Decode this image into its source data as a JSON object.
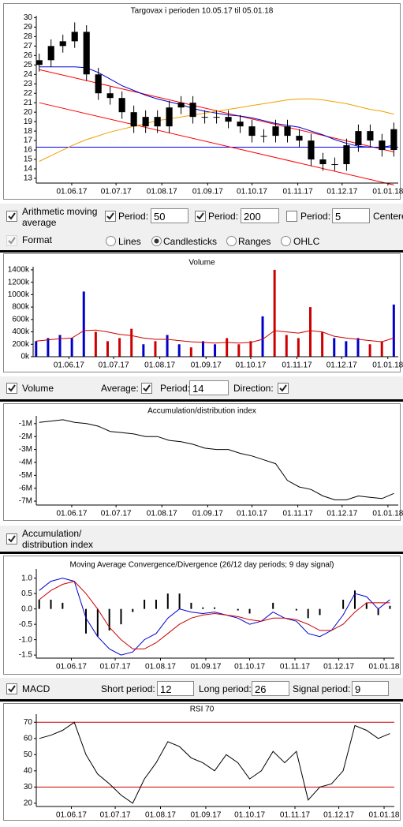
{
  "chart_data": [
    {
      "type": "candlestick",
      "title": "Targovax i perioden 10.05.17 til 05.01.18",
      "color": "#000000",
      "x": [
        "2017-05-10",
        "2017-05-18",
        "2017-05-26",
        "2017-06-03",
        "2017-06-11",
        "2017-06-19",
        "2017-06-27",
        "2017-07-05",
        "2017-07-13",
        "2017-07-21",
        "2017-07-29",
        "2017-08-06",
        "2017-08-14",
        "2017-08-22",
        "2017-08-30",
        "2017-09-07",
        "2017-09-15",
        "2017-09-23",
        "2017-10-01",
        "2017-10-09",
        "2017-10-17",
        "2017-10-25",
        "2017-11-02",
        "2017-11-10",
        "2017-11-18",
        "2017-11-26",
        "2017-12-04",
        "2017-12-12",
        "2017-12-20",
        "2017-12-28",
        "2018-01-05"
      ],
      "open": [
        25.0,
        25.5,
        27.0,
        27.5,
        28.5,
        24.0,
        22.0,
        21.5,
        20.0,
        18.5,
        19.5,
        18.5,
        20.5,
        21.0,
        19.5,
        19.5,
        19.5,
        19.0,
        18.5,
        17.5,
        17.5,
        18.5,
        17.5,
        17.0,
        15.0,
        14.5,
        14.5,
        16.5,
        18.0,
        17.0,
        16.0
      ],
      "high": [
        26.2,
        27.7,
        28.2,
        29.5,
        29.2,
        24.7,
        22.7,
        22.2,
        20.7,
        20.2,
        20.2,
        21.2,
        21.7,
        21.7,
        20.2,
        20.2,
        20.2,
        19.7,
        19.2,
        18.2,
        19.2,
        19.2,
        18.2,
        17.7,
        15.7,
        15.2,
        17.2,
        18.7,
        18.7,
        17.7,
        18.9
      ],
      "low": [
        24.3,
        24.8,
        26.3,
        26.8,
        23.3,
        21.3,
        20.8,
        19.3,
        17.8,
        17.8,
        17.8,
        17.8,
        19.8,
        18.8,
        18.8,
        18.8,
        18.3,
        17.8,
        16.8,
        16.8,
        16.8,
        16.8,
        16.3,
        14.3,
        13.8,
        13.8,
        13.8,
        15.8,
        16.3,
        15.3,
        15.3
      ],
      "close": [
        25.5,
        27.0,
        27.5,
        28.5,
        24.0,
        22.0,
        21.5,
        20.0,
        18.5,
        19.5,
        18.5,
        20.5,
        21.0,
        19.5,
        19.5,
        19.5,
        19.0,
        18.5,
        17.5,
        17.5,
        18.5,
        17.5,
        17.0,
        15.0,
        14.5,
        14.5,
        16.5,
        18.0,
        17.0,
        16.0,
        18.2
      ],
      "overlays": [
        {
          "color": "#0000cc",
          "values": [
            24.8,
            24.8,
            24.8,
            24.8,
            24.7,
            24.2,
            23.5,
            22.8,
            22.3,
            21.8,
            21.4,
            21.1,
            20.8,
            20.4,
            20.1,
            19.9,
            19.7,
            19.6,
            19.4,
            19.1,
            18.8,
            18.6,
            18.4,
            18.0,
            17.6,
            17.1,
            16.7,
            16.4,
            16.3,
            16.3,
            16.5
          ]
        },
        {
          "color": "#f0a000",
          "values": [
            14.8,
            15.4,
            16.0,
            16.6,
            17.1,
            17.5,
            17.9,
            18.2,
            18.5,
            18.8,
            19.1,
            19.3,
            19.5,
            19.7,
            19.9,
            20.1,
            20.3,
            20.5,
            20.7,
            20.9,
            21.1,
            21.3,
            21.4,
            21.4,
            21.3,
            21.1,
            20.9,
            20.6,
            20.3,
            20.1,
            19.8
          ]
        }
      ],
      "trendlines": [
        {
          "color": "#ff0000",
          "x": [
            "2017-05-10",
            "2018-01-05"
          ],
          "values": [
            24.5,
            15.8
          ]
        },
        {
          "color": "#ff0000",
          "x": [
            "2017-05-10",
            "2018-01-05"
          ],
          "values": [
            21.0,
            12.3
          ]
        }
      ],
      "hlines": [
        {
          "color": "#0000ff",
          "value": 16.3
        }
      ],
      "xlim": [
        "2017-05-08",
        "2018-01-08"
      ],
      "xticks": [
        {
          "value": "2017-06-01",
          "label": "01.06.17"
        },
        {
          "value": "2017-07-01",
          "label": "01.07.17"
        },
        {
          "value": "2017-08-01",
          "label": "01.08.17"
        },
        {
          "value": "2017-09-01",
          "label": "01.09.17"
        },
        {
          "value": "2017-10-01",
          "label": "01.10.17"
        },
        {
          "value": "2017-11-01",
          "label": "01.11.17"
        },
        {
          "value": "2017-12-01",
          "label": "01.12.17"
        },
        {
          "value": "2018-01-01",
          "label": "01.01.18"
        }
      ],
      "ylim": [
        12.5,
        30.2
      ],
      "yticks": [
        13,
        14,
        15,
        16,
        17,
        18,
        19,
        20,
        21,
        22,
        23,
        24,
        25,
        26,
        27,
        28,
        29,
        30
      ]
    },
    {
      "type": "bar",
      "title": "Volume",
      "x": [
        "2017-05-10",
        "2017-05-18",
        "2017-05-26",
        "2017-06-03",
        "2017-06-11",
        "2017-06-19",
        "2017-06-27",
        "2017-07-05",
        "2017-07-13",
        "2017-07-21",
        "2017-07-29",
        "2017-08-06",
        "2017-08-14",
        "2017-08-22",
        "2017-08-30",
        "2017-09-07",
        "2017-09-15",
        "2017-09-23",
        "2017-10-01",
        "2017-10-09",
        "2017-10-17",
        "2017-10-25",
        "2017-11-02",
        "2017-11-10",
        "2017-11-18",
        "2017-11-26",
        "2017-12-04",
        "2017-12-12",
        "2017-12-20",
        "2017-12-28",
        "2018-01-05"
      ],
      "values": [
        250,
        300,
        350,
        300,
        1050,
        400,
        250,
        300,
        450,
        200,
        250,
        350,
        200,
        150,
        250,
        200,
        300,
        200,
        250,
        650,
        1400,
        350,
        300,
        800,
        400,
        300,
        250,
        300,
        200,
        250,
        840
      ],
      "colors": [
        "#0000cc",
        "#0000cc",
        "#0000cc",
        "#0000cc",
        "#0000cc",
        "#cc0000",
        "#cc0000",
        "#cc0000",
        "#cc0000",
        "#0000cc",
        "#cc0000",
        "#0000cc",
        "#0000cc",
        "#cc0000",
        "#0000cc",
        "#0000cc",
        "#cc0000",
        "#cc0000",
        "#cc0000",
        "#0000cc",
        "#cc0000",
        "#cc0000",
        "#cc0000",
        "#cc0000",
        "#cc0000",
        "#0000cc",
        "#0000cc",
        "#0000cc",
        "#cc0000",
        "#cc0000",
        "#0000cc"
      ],
      "average": {
        "color": "#cc0000",
        "values": [
          250,
          270,
          290,
          300,
          420,
          430,
          400,
          360,
          340,
          300,
          280,
          280,
          260,
          240,
          230,
          220,
          230,
          220,
          230,
          280,
          420,
          400,
          380,
          420,
          400,
          330,
          300,
          280,
          260,
          240,
          300
        ]
      },
      "xlim": [
        "2017-05-08",
        "2018-01-08"
      ],
      "xticks": [
        {
          "value": "2017-06-01",
          "label": "01.06.17"
        },
        {
          "value": "2017-07-01",
          "label": "01.07.17"
        },
        {
          "value": "2017-08-01",
          "label": "01.08.17"
        },
        {
          "value": "2017-09-01",
          "label": "01.09.17"
        },
        {
          "value": "2017-10-01",
          "label": "01.10.17"
        },
        {
          "value": "2017-11-01",
          "label": "01.11.17"
        },
        {
          "value": "2017-12-01",
          "label": "01.12.17"
        },
        {
          "value": "2018-01-01",
          "label": "01.01.18"
        }
      ],
      "ylim": [
        0,
        1450
      ],
      "yticks": [
        {
          "value": 0,
          "label": "0k"
        },
        {
          "value": 200,
          "label": "200k"
        },
        {
          "value": 400,
          "label": "400k"
        },
        {
          "value": 600,
          "label": "600k"
        },
        {
          "value": 800,
          "label": "800k"
        },
        {
          "value": 1000,
          "label": "1000k"
        },
        {
          "value": 1200,
          "label": "1200k"
        },
        {
          "value": 1400,
          "label": "1400k"
        }
      ]
    },
    {
      "type": "line",
      "title": "Accumulation/distribution index",
      "x": [
        "2017-05-10",
        "2017-05-18",
        "2017-05-26",
        "2017-06-03",
        "2017-06-11",
        "2017-06-19",
        "2017-06-27",
        "2017-07-05",
        "2017-07-13",
        "2017-07-21",
        "2017-07-29",
        "2017-08-06",
        "2017-08-14",
        "2017-08-22",
        "2017-08-30",
        "2017-09-07",
        "2017-09-15",
        "2017-09-23",
        "2017-10-01",
        "2017-10-09",
        "2017-10-17",
        "2017-10-25",
        "2017-11-02",
        "2017-11-10",
        "2017-11-18",
        "2017-11-26",
        "2017-12-04",
        "2017-12-12",
        "2017-12-20",
        "2017-12-28",
        "2018-01-05"
      ],
      "series": [
        {
          "color": "#000000",
          "values": [
            -0.9,
            -0.8,
            -0.7,
            -0.9,
            -1.0,
            -1.2,
            -1.6,
            -1.7,
            -1.8,
            -2.0,
            -2.0,
            -2.3,
            -2.4,
            -2.6,
            -2.9,
            -3.0,
            -3.0,
            -3.3,
            -3.5,
            -3.8,
            -4.1,
            -5.4,
            -5.9,
            -6.1,
            -6.6,
            -6.9,
            -6.9,
            -6.6,
            -6.7,
            -6.8,
            -6.4
          ]
        }
      ],
      "xlim": [
        "2017-05-08",
        "2018-01-08"
      ],
      "xticks": [
        {
          "value": "2017-06-01",
          "label": "01.06.17"
        },
        {
          "value": "2017-07-01",
          "label": "01.07.17"
        },
        {
          "value": "2017-08-01",
          "label": "01.08.17"
        },
        {
          "value": "2017-09-01",
          "label": "01.09.17"
        },
        {
          "value": "2017-10-01",
          "label": "01.10.17"
        },
        {
          "value": "2017-11-01",
          "label": "01.11.17"
        },
        {
          "value": "2017-12-01",
          "label": "01.12.17"
        },
        {
          "value": "2018-01-01",
          "label": "01.01.18"
        }
      ],
      "ylim": [
        -7.3,
        -0.4
      ],
      "yticks": [
        {
          "value": -1,
          "label": "-1M"
        },
        {
          "value": -2,
          "label": "-2M"
        },
        {
          "value": -3,
          "label": "-3M"
        },
        {
          "value": -4,
          "label": "-4M"
        },
        {
          "value": -5,
          "label": "-5M"
        },
        {
          "value": -6,
          "label": "-6M"
        },
        {
          "value": -7,
          "label": "-7M"
        }
      ]
    },
    {
      "type": "line",
      "title": "Moving Average Convergence/Divergence (26/12 day periods; 9 day signal)",
      "x": [
        "2017-05-10",
        "2017-05-18",
        "2017-05-26",
        "2017-06-03",
        "2017-06-11",
        "2017-06-19",
        "2017-06-27",
        "2017-07-05",
        "2017-07-13",
        "2017-07-21",
        "2017-07-29",
        "2017-08-06",
        "2017-08-14",
        "2017-08-22",
        "2017-08-30",
        "2017-09-07",
        "2017-09-15",
        "2017-09-23",
        "2017-10-01",
        "2017-10-09",
        "2017-10-17",
        "2017-10-25",
        "2017-11-02",
        "2017-11-10",
        "2017-11-18",
        "2017-11-26",
        "2017-12-04",
        "2017-12-12",
        "2017-12-20",
        "2017-12-28",
        "2018-01-05"
      ],
      "series": [
        {
          "color": "#0000cc",
          "values": [
            0.6,
            0.9,
            1.0,
            0.9,
            -0.3,
            -0.9,
            -1.3,
            -1.5,
            -1.4,
            -1.0,
            -0.8,
            -0.3,
            0.0,
            -0.1,
            -0.15,
            -0.1,
            -0.2,
            -0.3,
            -0.5,
            -0.4,
            -0.1,
            -0.3,
            -0.4,
            -0.8,
            -0.9,
            -0.7,
            -0.2,
            0.5,
            0.4,
            0.0,
            0.3
          ]
        },
        {
          "color": "#cc0000",
          "values": [
            0.3,
            0.6,
            0.8,
            0.9,
            0.5,
            0.0,
            -0.6,
            -1.0,
            -1.3,
            -1.3,
            -1.1,
            -0.8,
            -0.5,
            -0.3,
            -0.2,
            -0.15,
            -0.2,
            -0.25,
            -0.35,
            -0.4,
            -0.3,
            -0.3,
            -0.35,
            -0.5,
            -0.7,
            -0.7,
            -0.5,
            -0.1,
            0.2,
            0.2,
            0.2
          ]
        }
      ],
      "histogram": {
        "color": "#000000",
        "values": [
          0.3,
          0.3,
          0.2,
          0.0,
          -0.8,
          -0.9,
          -0.7,
          -0.5,
          -0.1,
          0.3,
          0.3,
          0.5,
          0.5,
          0.2,
          0.05,
          0.05,
          0.0,
          -0.05,
          -0.15,
          0.0,
          0.2,
          0.0,
          -0.05,
          -0.3,
          -0.2,
          0.0,
          0.3,
          0.6,
          0.2,
          -0.2,
          0.1
        ]
      },
      "xlim": [
        "2017-05-08",
        "2018-01-08"
      ],
      "xticks": [
        {
          "value": "2017-06-01",
          "label": "01.06.17"
        },
        {
          "value": "2017-07-01",
          "label": "01.07.17"
        },
        {
          "value": "2017-08-01",
          "label": "01.08.17"
        },
        {
          "value": "2017-09-01",
          "label": "01.09.17"
        },
        {
          "value": "2017-10-01",
          "label": "01.10.17"
        },
        {
          "value": "2017-11-01",
          "label": "01.11.17"
        },
        {
          "value": "2017-12-01",
          "label": "01.12.17"
        },
        {
          "value": "2018-01-01",
          "label": "01.01.18"
        }
      ],
      "ylim": [
        -1.6,
        1.3
      ],
      "yticks": [
        {
          "value": 1,
          "label": "1.0"
        },
        0.5,
        {
          "value": 0,
          "label": "0.0"
        },
        -0.5,
        {
          "value": -1,
          "label": "-1.0"
        },
        -1.5
      ]
    },
    {
      "type": "line",
      "title": "RSI 70",
      "x": [
        "2017-05-10",
        "2017-05-18",
        "2017-05-26",
        "2017-06-03",
        "2017-06-11",
        "2017-06-19",
        "2017-06-27",
        "2017-07-05",
        "2017-07-13",
        "2017-07-21",
        "2017-07-29",
        "2017-08-06",
        "2017-08-14",
        "2017-08-22",
        "2017-08-30",
        "2017-09-07",
        "2017-09-15",
        "2017-09-23",
        "2017-10-01",
        "2017-10-09",
        "2017-10-17",
        "2017-10-25",
        "2017-11-02",
        "2017-11-10",
        "2017-11-18",
        "2017-11-26",
        "2017-12-04",
        "2017-12-12",
        "2017-12-20",
        "2017-12-28",
        "2018-01-05"
      ],
      "series": [
        {
          "color": "#000000",
          "values": [
            60,
            62,
            65,
            70,
            50,
            38,
            32,
            25,
            20,
            35,
            45,
            58,
            55,
            48,
            45,
            40,
            50,
            45,
            35,
            40,
            52,
            45,
            52,
            22,
            30,
            32,
            40,
            68,
            65,
            60,
            63
          ]
        }
      ],
      "hlines": [
        {
          "color": "#cc0000",
          "value": 30
        },
        {
          "color": "#cc0000",
          "value": 70
        }
      ],
      "xlim": [
        "2017-05-08",
        "2018-01-08"
      ],
      "xticks": [
        {
          "value": "2017-06-01",
          "label": "01.06.17"
        },
        {
          "value": "2017-07-01",
          "label": "01.07.17"
        },
        {
          "value": "2017-08-01",
          "label": "01.08.17"
        },
        {
          "value": "2017-09-01",
          "label": "01.09.17"
        },
        {
          "value": "2017-10-01",
          "label": "01.10.17"
        },
        {
          "value": "2017-11-01",
          "label": "01.11.17"
        },
        {
          "value": "2017-12-01",
          "label": "01.12.17"
        },
        {
          "value": "2018-01-01",
          "label": "01.01.18"
        }
      ],
      "ylim": [
        18,
        75
      ],
      "yticks": [
        20,
        30,
        40,
        50,
        60,
        70
      ]
    }
  ],
  "controls": {
    "ma": {
      "checked": true,
      "label": "Arithmetic moving average",
      "periods": [
        {
          "checked": true,
          "label": "Period:",
          "value": "50"
        },
        {
          "checked": true,
          "label": "Period:",
          "value": "200"
        },
        {
          "checked": false,
          "label": "Period:",
          "value": "5"
        }
      ],
      "extra": "Centere"
    },
    "format": {
      "checked": true,
      "disabled": true,
      "label": "Format",
      "options": [
        "Lines",
        "Candlesticks",
        "Ranges",
        "OHLC"
      ],
      "selected": 1
    },
    "volume": {
      "checked": true,
      "label": "Volume",
      "average": {
        "label": "Average:",
        "checked": true
      },
      "period": {
        "label": "Period:",
        "value": "14"
      },
      "direction": {
        "label": "Direction:",
        "checked": true
      }
    },
    "ad": {
      "checked": true,
      "label": "Accumulation/ distribution index"
    },
    "macd": {
      "checked": true,
      "label": "MACD",
      "fields": [
        {
          "label": "Short period:",
          "value": "12"
        },
        {
          "label": "Long period:",
          "value": "26"
        },
        {
          "label": "Signal period:",
          "value": "9"
        }
      ]
    }
  }
}
